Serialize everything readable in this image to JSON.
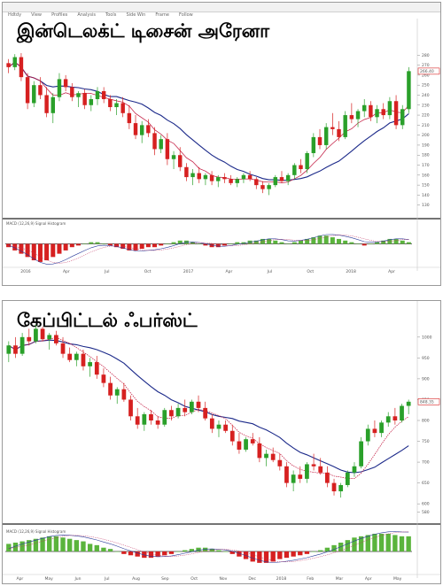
{
  "menu": [
    "Hdtdy",
    "View",
    "Profiles",
    "Analysis",
    "Tools",
    "Side Win",
    "Frame",
    "Follow"
  ],
  "chart_data": [
    {
      "type": "candlestick",
      "title": "இன்டெலக்ட் டிசைன் அரேனா",
      "ylim": [
        120,
        290
      ],
      "y_ticks": [
        280,
        270,
        260,
        250,
        240,
        230,
        220,
        210,
        200,
        190,
        180,
        170,
        160,
        150,
        140,
        130
      ],
      "price_label": "266.40",
      "x_labels": [
        "2016",
        "Apr",
        "Jul",
        "Oct",
        "2017",
        "Apr",
        "Jul",
        "Oct",
        "2018",
        "Apr"
      ],
      "candles": [
        [
          272,
          276,
          262,
          268
        ],
        [
          268,
          281,
          265,
          278
        ],
        [
          278,
          282,
          254,
          258
        ],
        [
          258,
          262,
          226,
          232
        ],
        [
          232,
          254,
          228,
          250
        ],
        [
          250,
          258,
          236,
          240
        ],
        [
          240,
          248,
          218,
          222
        ],
        [
          222,
          242,
          212,
          238
        ],
        [
          238,
          262,
          234,
          256
        ],
        [
          256,
          260,
          244,
          248
        ],
        [
          248,
          252,
          234,
          238
        ],
        [
          238,
          244,
          228,
          242
        ],
        [
          242,
          246,
          226,
          230
        ],
        [
          230,
          240,
          224,
          236
        ],
        [
          236,
          248,
          230,
          244
        ],
        [
          244,
          248,
          232,
          236
        ],
        [
          236,
          240,
          224,
          228
        ],
        [
          228,
          236,
          220,
          232
        ],
        [
          232,
          238,
          218,
          222
        ],
        [
          222,
          230,
          206,
          212
        ],
        [
          212,
          220,
          196,
          200
        ],
        [
          200,
          214,
          192,
          210
        ],
        [
          210,
          216,
          198,
          202
        ],
        [
          202,
          208,
          180,
          186
        ],
        [
          186,
          200,
          182,
          196
        ],
        [
          196,
          202,
          170,
          176
        ],
        [
          176,
          184,
          166,
          180
        ],
        [
          180,
          188,
          164,
          168
        ],
        [
          168,
          172,
          154,
          158
        ],
        [
          158,
          166,
          150,
          162
        ],
        [
          162,
          168,
          152,
          156
        ],
        [
          156,
          162,
          150,
          160
        ],
        [
          160,
          164,
          150,
          154
        ],
        [
          154,
          160,
          148,
          158
        ],
        [
          158,
          162,
          152,
          156
        ],
        [
          156,
          160,
          150,
          152
        ],
        [
          152,
          158,
          148,
          156
        ],
        [
          156,
          162,
          152,
          160
        ],
        [
          160,
          164,
          154,
          156
        ],
        [
          156,
          158,
          146,
          150
        ],
        [
          150,
          154,
          142,
          146
        ],
        [
          146,
          152,
          140,
          150
        ],
        [
          150,
          160,
          148,
          158
        ],
        [
          158,
          164,
          152,
          154
        ],
        [
          154,
          162,
          150,
          160
        ],
        [
          160,
          172,
          156,
          170
        ],
        [
          170,
          176,
          162,
          166
        ],
        [
          166,
          184,
          162,
          182
        ],
        [
          182,
          202,
          178,
          198
        ],
        [
          198,
          206,
          186,
          190
        ],
        [
          190,
          212,
          186,
          208
        ],
        [
          208,
          222,
          200,
          206
        ],
        [
          206,
          214,
          194,
          198
        ],
        [
          198,
          224,
          196,
          220
        ],
        [
          220,
          232,
          212,
          216
        ],
        [
          216,
          226,
          208,
          224
        ],
        [
          224,
          236,
          218,
          230
        ],
        [
          230,
          234,
          214,
          218
        ],
        [
          218,
          230,
          212,
          226
        ],
        [
          226,
          232,
          216,
          220
        ],
        [
          220,
          238,
          216,
          234
        ],
        [
          234,
          240,
          206,
          210
        ],
        [
          210,
          230,
          206,
          226
        ],
        [
          226,
          268,
          222,
          264
        ]
      ],
      "ma_fast_name": "",
      "ma_slow_name": "",
      "indicator_label": "MACD (12,26,9) Signal Histogram",
      "macd_hist": [
        -2,
        -4,
        -6,
        -8,
        -10,
        -11,
        -10,
        -8,
        -6,
        -4,
        -2,
        -1,
        0,
        1,
        1,
        0,
        -1,
        -2,
        -3,
        -4,
        -4,
        -3,
        -2,
        -2,
        -1,
        0,
        1,
        2,
        2,
        1,
        0,
        -1,
        -2,
        -2,
        -1,
        0,
        1,
        1,
        2,
        2,
        3,
        3,
        2,
        1,
        0,
        1,
        2,
        3,
        4,
        5,
        5,
        4,
        3,
        2,
        1,
        0,
        -1,
        0,
        1,
        2,
        3,
        3,
        2,
        1
      ]
    },
    {
      "type": "candlestick",
      "title": "கேப்பிட்டல் ஃபர்ஸ்ட்",
      "ylim": [
        560,
        1040
      ],
      "y_ticks": [
        1000,
        950,
        900,
        850,
        800,
        750,
        700,
        650,
        600,
        580
      ],
      "price_label": "848.35",
      "x_labels": [
        "Apr",
        "May",
        "Jun",
        "Jul",
        "Aug",
        "Sep",
        "Oct",
        "Nov",
        "Dec",
        "2018",
        "Feb",
        "Mar",
        "Apr",
        "May"
      ],
      "candles": [
        [
          960,
          990,
          940,
          980
        ],
        [
          980,
          1000,
          950,
          960
        ],
        [
          960,
          1010,
          955,
          1000
        ],
        [
          1000,
          1020,
          980,
          990
        ],
        [
          990,
          1030,
          985,
          1020
        ],
        [
          1020,
          1025,
          990,
          995
        ],
        [
          995,
          1010,
          970,
          1005
        ],
        [
          1005,
          1015,
          980,
          985
        ],
        [
          985,
          1000,
          950,
          960
        ],
        [
          960,
          975,
          940,
          945
        ],
        [
          945,
          965,
          930,
          960
        ],
        [
          960,
          970,
          920,
          930
        ],
        [
          930,
          950,
          905,
          940
        ],
        [
          940,
          955,
          900,
          910
        ],
        [
          910,
          925,
          880,
          890
        ],
        [
          890,
          905,
          850,
          860
        ],
        [
          860,
          880,
          840,
          875
        ],
        [
          875,
          890,
          845,
          850
        ],
        [
          850,
          860,
          800,
          810
        ],
        [
          810,
          830,
          780,
          790
        ],
        [
          790,
          820,
          775,
          815
        ],
        [
          815,
          825,
          790,
          800
        ],
        [
          800,
          810,
          780,
          790
        ],
        [
          790,
          830,
          785,
          825
        ],
        [
          825,
          835,
          800,
          810
        ],
        [
          810,
          840,
          805,
          830
        ],
        [
          830,
          850,
          810,
          820
        ],
        [
          820,
          850,
          815,
          845
        ],
        [
          845,
          860,
          820,
          830
        ],
        [
          830,
          845,
          800,
          805
        ],
        [
          805,
          815,
          770,
          780
        ],
        [
          780,
          800,
          760,
          790
        ],
        [
          790,
          800,
          770,
          775
        ],
        [
          775,
          790,
          740,
          750
        ],
        [
          750,
          770,
          720,
          730
        ],
        [
          730,
          760,
          725,
          755
        ],
        [
          755,
          770,
          740,
          745
        ],
        [
          745,
          760,
          700,
          710
        ],
        [
          710,
          730,
          690,
          720
        ],
        [
          720,
          735,
          700,
          705
        ],
        [
          705,
          720,
          680,
          690
        ],
        [
          690,
          700,
          640,
          650
        ],
        [
          650,
          680,
          630,
          670
        ],
        [
          670,
          690,
          650,
          660
        ],
        [
          660,
          700,
          650,
          695
        ],
        [
          695,
          720,
          680,
          690
        ],
        [
          690,
          710,
          670,
          675
        ],
        [
          675,
          690,
          640,
          650
        ],
        [
          650,
          660,
          620,
          630
        ],
        [
          630,
          650,
          615,
          645
        ],
        [
          645,
          680,
          640,
          675
        ],
        [
          675,
          700,
          665,
          690
        ],
        [
          690,
          760,
          685,
          750
        ],
        [
          750,
          790,
          740,
          780
        ],
        [
          780,
          800,
          760,
          770
        ],
        [
          770,
          800,
          760,
          795
        ],
        [
          795,
          820,
          785,
          810
        ],
        [
          810,
          830,
          790,
          800
        ],
        [
          800,
          840,
          795,
          835
        ],
        [
          835,
          850,
          815,
          845
        ]
      ],
      "ma_fast_name": "",
      "ma_slow_name": "",
      "indicator_label": "MACD (12,26,9) Signal Histogram",
      "macd_hist": [
        6,
        7,
        8,
        9,
        10,
        11,
        12,
        12,
        11,
        10,
        9,
        8,
        6,
        5,
        3,
        2,
        0,
        -2,
        -3,
        -4,
        -5,
        -5,
        -4,
        -3,
        -2,
        0,
        1,
        2,
        3,
        3,
        2,
        1,
        0,
        -2,
        -4,
        -6,
        -8,
        -9,
        -9,
        -8,
        -6,
        -5,
        -4,
        -3,
        -2,
        0,
        1,
        3,
        5,
        7,
        9,
        11,
        12,
        13,
        14,
        14,
        14,
        13,
        12,
        12
      ]
    }
  ]
}
